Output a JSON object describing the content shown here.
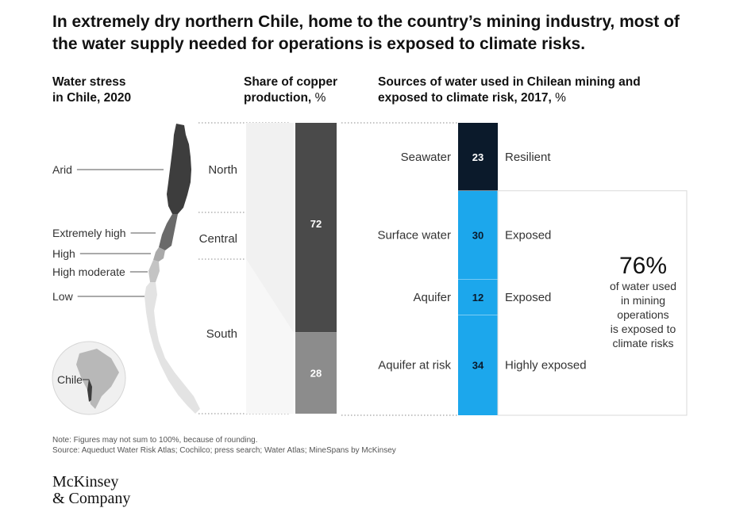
{
  "title": "In extremely dry northern Chile, home to the country’s mining industry, most of the water supply needed for operations is exposed to climate risks.",
  "headers": {
    "stress_line1": "Water stress",
    "stress_line2": "in Chile, 2020",
    "share_line1": "Share of copper",
    "share_line2": "production,",
    "share_unit": "%",
    "sources_line1": "Sources of water used in Chilean mining and",
    "sources_line2": "exposed to climate risk, 2017,",
    "sources_unit": "%"
  },
  "map": {
    "stress_levels": [
      {
        "label": "Arid",
        "color": "#3d3d3d"
      },
      {
        "label": "Extremely high",
        "color": "#6a6a6a"
      },
      {
        "label": "High",
        "color": "#a9a9a9"
      },
      {
        "label": "High moderate",
        "color": "#c4c4c4"
      },
      {
        "label": "Low",
        "color": "#e3e3e3"
      }
    ],
    "globe_label": "Chile"
  },
  "colors": {
    "resilient": "#0b1a2b",
    "exposed": "#1ca7ec",
    "copper_72": "#4a4a4a",
    "copper_28": "#8c8c8c"
  },
  "chart_data": [
    {
      "type": "bar",
      "title": "Share of copper production, %",
      "categories": [
        "North",
        "Central",
        "South"
      ],
      "segments": [
        {
          "label": "72",
          "value": 72,
          "regions": [
            "North",
            "Central"
          ]
        },
        {
          "label": "28",
          "value": 28,
          "regions": [
            "South"
          ]
        }
      ]
    },
    {
      "type": "bar",
      "title": "Sources of water used in Chilean mining and exposed to climate risk, 2017, %",
      "categories": [
        "Seawater",
        "Surface water",
        "Aquifer",
        "Aquifer at risk"
      ],
      "values": [
        23,
        30,
        12,
        34
      ],
      "risk": [
        "Resilient",
        "Exposed",
        "Exposed",
        "Highly exposed"
      ],
      "callout": {
        "value": "76%",
        "text": [
          "of water used",
          "in mining",
          "operations",
          "is exposed to",
          "climate risks"
        ]
      }
    }
  ],
  "footer": {
    "note": "Note: Figures may not sum to 100%, because of rounding.",
    "source": "Source: Aqueduct Water Risk Atlas; Cochilco; press search; Water Atlas; MineSpans by McKinsey",
    "logo_line1": "McKinsey",
    "logo_line2": "& Company"
  }
}
